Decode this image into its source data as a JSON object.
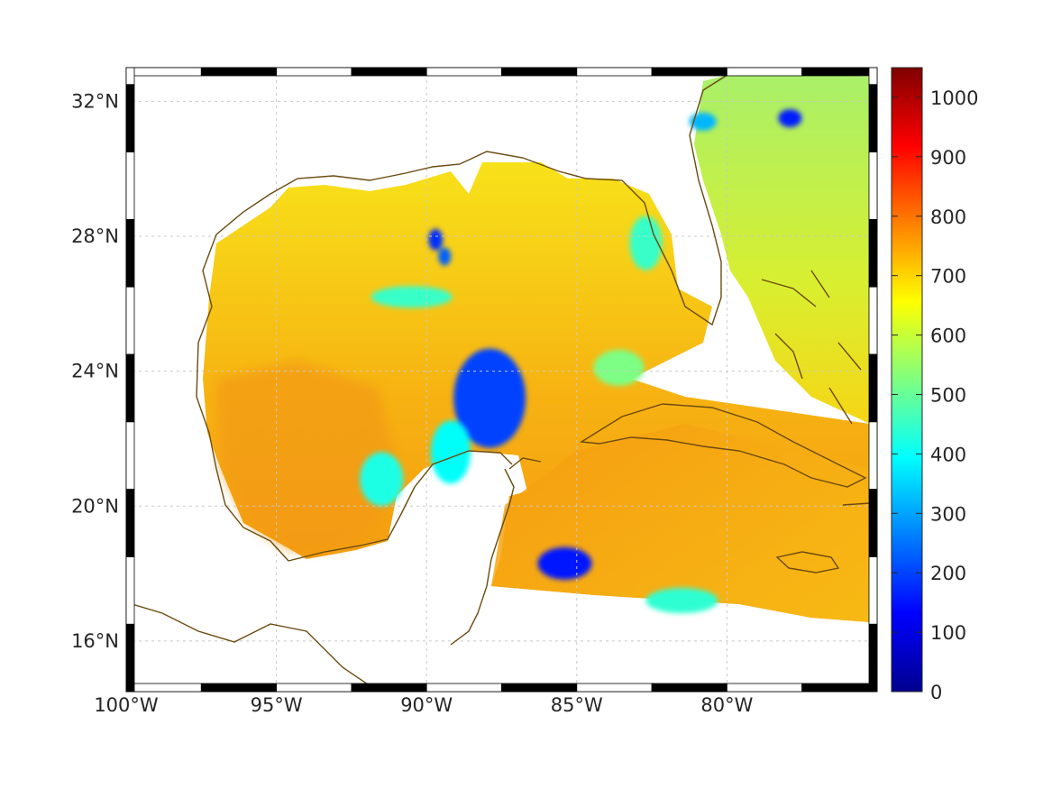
{
  "map": {
    "lon_range": [
      -100,
      -75
    ],
    "lat_range": [
      14.5,
      33
    ],
    "lon_ticks": [
      {
        "lon": -100,
        "label": "100°W"
      },
      {
        "lon": -95,
        "label": "95°W"
      },
      {
        "lon": -90,
        "label": "90°W"
      },
      {
        "lon": -85,
        "label": "85°W"
      },
      {
        "lon": -80,
        "label": "80°W"
      }
    ],
    "lat_ticks": [
      {
        "lat": 32,
        "label": "32°N"
      },
      {
        "lat": 28,
        "label": "28°N"
      },
      {
        "lat": 24,
        "label": "24°N"
      },
      {
        "lat": 20,
        "label": "20°N"
      },
      {
        "lat": 16,
        "label": "16°N"
      }
    ],
    "gridlines": true,
    "coastline_color": "#6b4a10",
    "field_background_level": 720,
    "low_value_patches": [
      {
        "lon": -87.9,
        "lat": 23.2,
        "value": 200
      },
      {
        "lon": -85.4,
        "lat": 18.3,
        "value": 150
      },
      {
        "lon": -89.7,
        "lat": 27.9,
        "value": 180
      },
      {
        "lon": -89.4,
        "lat": 27.4,
        "value": 230
      },
      {
        "lon": -80.8,
        "lat": 31.4,
        "value": 320
      },
      {
        "lon": -77.9,
        "lat": 31.5,
        "value": 160
      },
      {
        "lon": -89.2,
        "lat": 21.6,
        "value": 400
      },
      {
        "lon": -91.5,
        "lat": 20.8,
        "value": 420
      },
      {
        "lon": -81.5,
        "lat": 17.2,
        "value": 440
      },
      {
        "lon": -83.6,
        "lat": 24.1,
        "value": 520
      },
      {
        "lon": -90.5,
        "lat": 26.2,
        "value": 450
      },
      {
        "lon": -82.7,
        "lat": 27.8,
        "value": 450
      }
    ]
  },
  "colorbar": {
    "colormap": "jet",
    "min": 0,
    "max": 1050,
    "tick_labels": [
      "0",
      "100",
      "200",
      "300",
      "400",
      "500",
      "600",
      "700",
      "800",
      "900",
      "1000"
    ]
  }
}
